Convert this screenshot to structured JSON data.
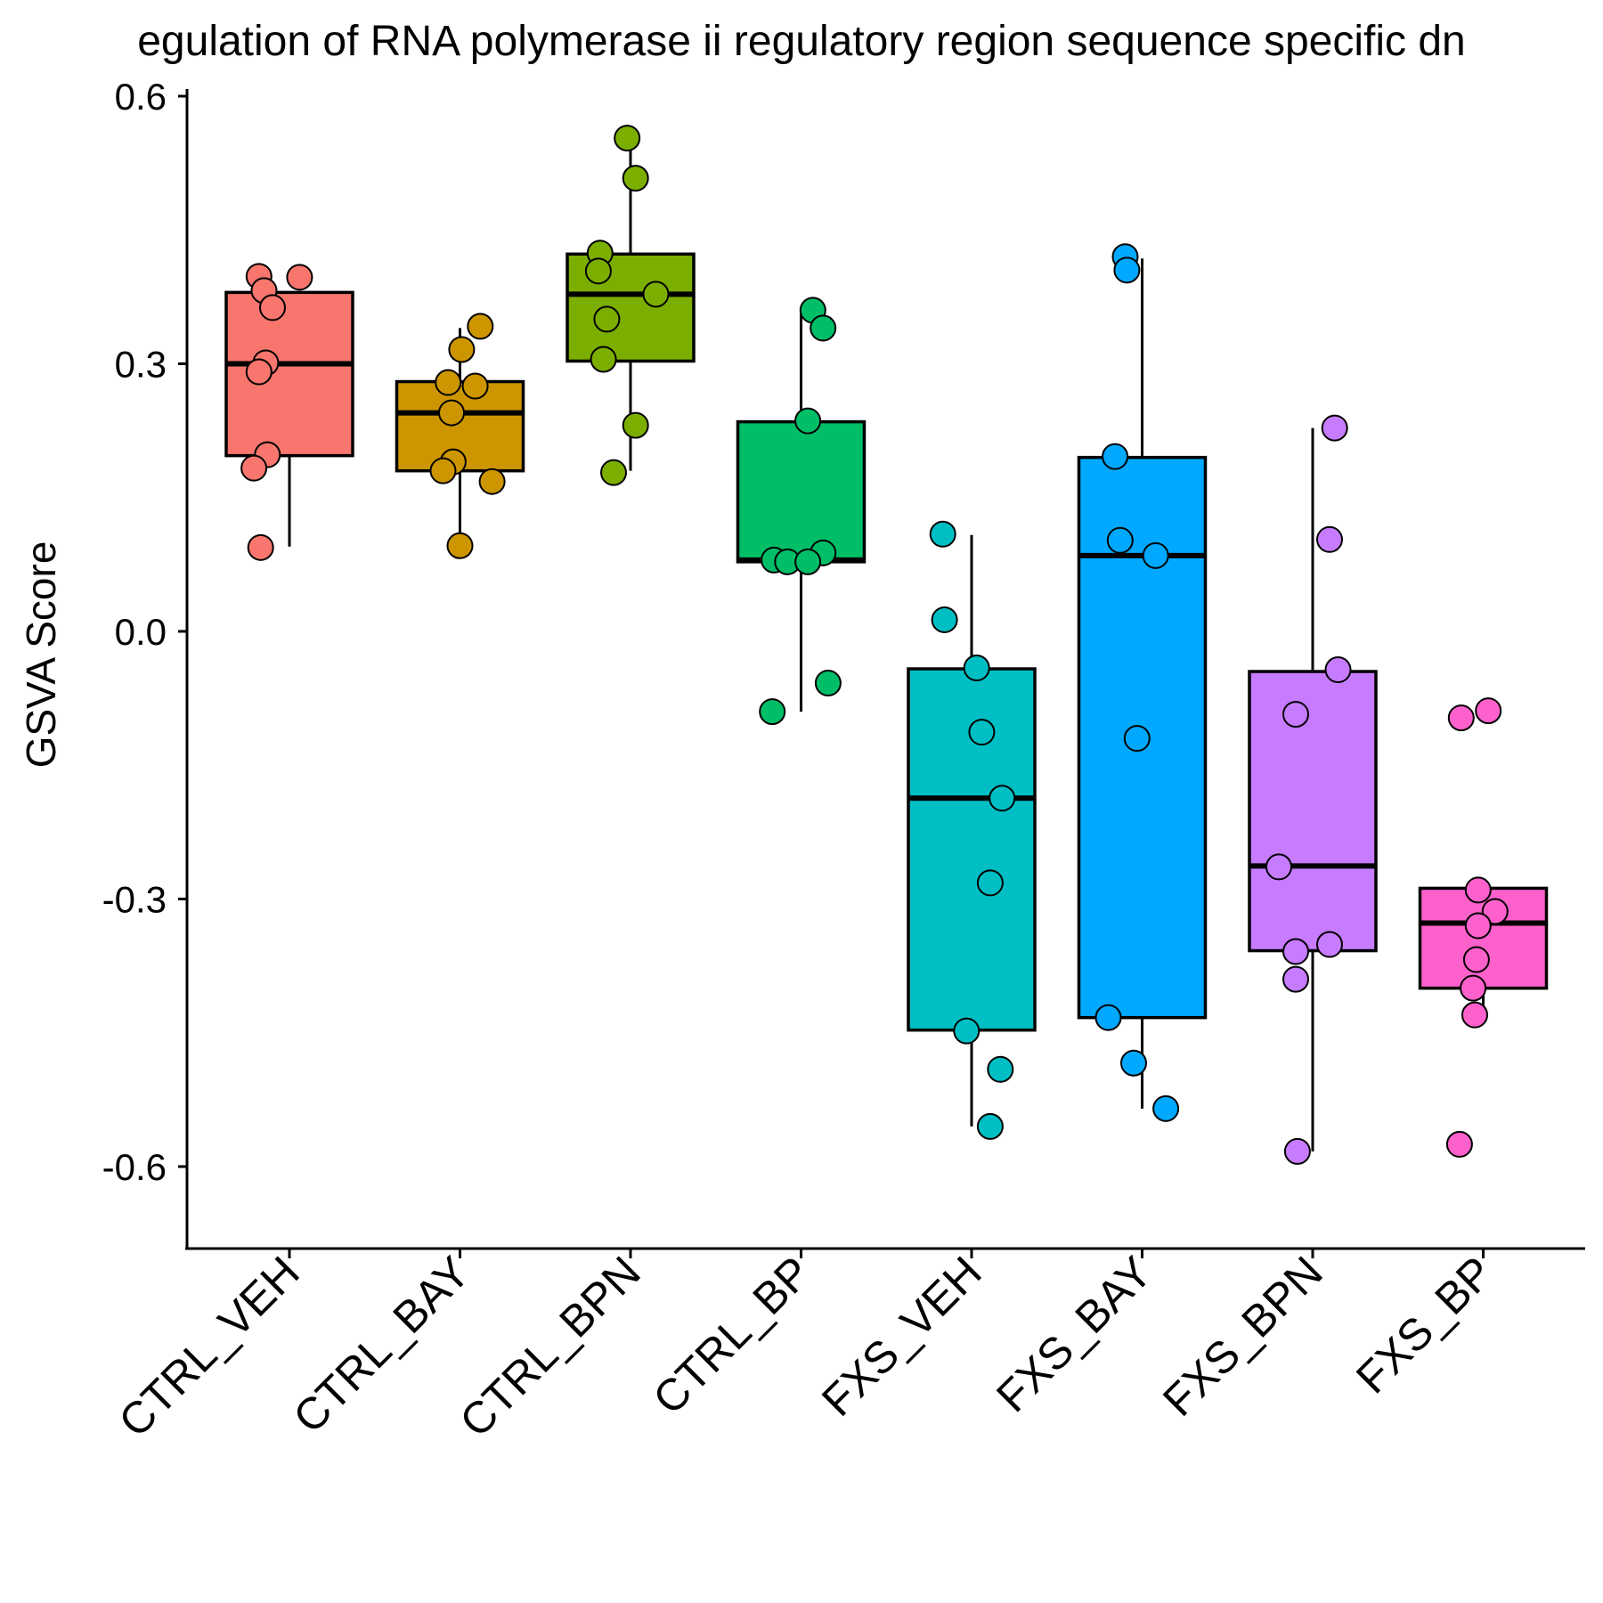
{
  "chart_data": {
    "type": "box",
    "title": "egulation of RNA polymerase ii regulatory region sequence specific dn",
    "xlabel": "",
    "ylabel": "GSVA Score",
    "ylim": [
      -0.645,
      0.6
    ],
    "yticks": [
      0.6,
      0.3,
      0.0,
      -0.3,
      -0.6
    ],
    "ytick_labels": [
      "0.6",
      "0.3",
      "0.0",
      "-0.3",
      "-0.6"
    ],
    "categories": [
      "CTRL_VEH",
      "CTRL_BAY",
      "CTRL_BPN",
      "CTRL_BP",
      "FXS_VEH",
      "FXS_BAY",
      "FXS_BPN",
      "FXS_BP"
    ],
    "colors": [
      "#F8766D",
      "#CD9600",
      "#7CAE00",
      "#00BE67",
      "#00BFC4",
      "#00A9FF",
      "#C77CFF",
      "#FF61CC"
    ],
    "boxes": [
      {
        "whisker_low": 0.095,
        "q1": 0.197,
        "median": 0.3,
        "q3": 0.38,
        "whisker_high": 0.38
      },
      {
        "whisker_low": 0.095,
        "q1": 0.18,
        "median": 0.245,
        "q3": 0.28,
        "whisker_high": 0.34
      },
      {
        "whisker_low": 0.18,
        "q1": 0.303,
        "median": 0.378,
        "q3": 0.423,
        "whisker_high": 0.552
      },
      {
        "whisker_low": -0.09,
        "q1": 0.078,
        "median": 0.08,
        "q3": 0.235,
        "whisker_high": 0.36
      },
      {
        "whisker_low": -0.555,
        "q1": -0.447,
        "median": -0.187,
        "q3": -0.042,
        "whisker_high": 0.108
      },
      {
        "whisker_low": -0.535,
        "q1": -0.433,
        "median": 0.085,
        "q3": 0.195,
        "whisker_high": 0.418
      },
      {
        "whisker_low": -0.583,
        "q1": -0.358,
        "median": -0.263,
        "q3": -0.045,
        "whisker_high": 0.228
      },
      {
        "whisker_low": -0.43,
        "q1": -0.4,
        "median": -0.327,
        "q3": -0.288,
        "whisker_high": -0.288
      }
    ],
    "points": [
      [
        {
          "jitter": -0.18,
          "y": 0.398
        },
        {
          "jitter": 0.06,
          "y": 0.397
        },
        {
          "jitter": -0.15,
          "y": 0.382
        },
        {
          "jitter": -0.1,
          "y": 0.363
        },
        {
          "jitter": -0.14,
          "y": 0.301
        },
        {
          "jitter": -0.18,
          "y": 0.291
        },
        {
          "jitter": -0.13,
          "y": 0.198
        },
        {
          "jitter": -0.21,
          "y": 0.183
        },
        {
          "jitter": -0.17,
          "y": 0.094
        }
      ],
      [
        {
          "jitter": 0.12,
          "y": 0.342
        },
        {
          "jitter": 0.01,
          "y": 0.316
        },
        {
          "jitter": -0.07,
          "y": 0.279
        },
        {
          "jitter": 0.09,
          "y": 0.275
        },
        {
          "jitter": -0.05,
          "y": 0.245
        },
        {
          "jitter": -0.04,
          "y": 0.19
        },
        {
          "jitter": -0.1,
          "y": 0.18
        },
        {
          "jitter": 0.19,
          "y": 0.168
        },
        {
          "jitter": 0.0,
          "y": 0.096
        }
      ],
      [
        {
          "jitter": -0.02,
          "y": 0.553
        },
        {
          "jitter": 0.03,
          "y": 0.508
        },
        {
          "jitter": -0.18,
          "y": 0.424
        },
        {
          "jitter": -0.19,
          "y": 0.404
        },
        {
          "jitter": 0.15,
          "y": 0.378
        },
        {
          "jitter": -0.14,
          "y": 0.35
        },
        {
          "jitter": -0.16,
          "y": 0.305
        },
        {
          "jitter": 0.03,
          "y": 0.231
        },
        {
          "jitter": -0.1,
          "y": 0.178
        }
      ],
      [
        {
          "jitter": 0.07,
          "y": 0.36
        },
        {
          "jitter": 0.13,
          "y": 0.34
        },
        {
          "jitter": 0.04,
          "y": 0.236
        },
        {
          "jitter": 0.13,
          "y": 0.088
        },
        {
          "jitter": -0.16,
          "y": 0.08
        },
        {
          "jitter": -0.08,
          "y": 0.078
        },
        {
          "jitter": 0.04,
          "y": 0.078
        },
        {
          "jitter": 0.16,
          "y": -0.058
        },
        {
          "jitter": -0.17,
          "y": -0.09
        }
      ],
      [
        {
          "jitter": -0.17,
          "y": 0.109
        },
        {
          "jitter": -0.16,
          "y": 0.013
        },
        {
          "jitter": 0.03,
          "y": -0.041
        },
        {
          "jitter": 0.06,
          "y": -0.113
        },
        {
          "jitter": 0.18,
          "y": -0.187
        },
        {
          "jitter": 0.11,
          "y": -0.282
        },
        {
          "jitter": -0.03,
          "y": -0.448
        },
        {
          "jitter": 0.17,
          "y": -0.491
        },
        {
          "jitter": 0.11,
          "y": -0.555
        }
      ],
      [
        {
          "jitter": -0.1,
          "y": 0.42
        },
        {
          "jitter": -0.09,
          "y": 0.405
        },
        {
          "jitter": -0.16,
          "y": 0.196
        },
        {
          "jitter": -0.13,
          "y": 0.102
        },
        {
          "jitter": 0.08,
          "y": 0.085
        },
        {
          "jitter": -0.03,
          "y": -0.12
        },
        {
          "jitter": -0.2,
          "y": -0.433
        },
        {
          "jitter": -0.05,
          "y": -0.484
        },
        {
          "jitter": 0.14,
          "y": -0.535
        }
      ],
      [
        {
          "jitter": 0.13,
          "y": 0.228
        },
        {
          "jitter": 0.1,
          "y": 0.103
        },
        {
          "jitter": 0.15,
          "y": -0.043
        },
        {
          "jitter": -0.1,
          "y": -0.093
        },
        {
          "jitter": -0.2,
          "y": -0.264
        },
        {
          "jitter": 0.1,
          "y": -0.351
        },
        {
          "jitter": -0.1,
          "y": -0.359
        },
        {
          "jitter": -0.1,
          "y": -0.39
        },
        {
          "jitter": -0.09,
          "y": -0.583
        }
      ],
      [
        {
          "jitter": 0.03,
          "y": -0.089
        },
        {
          "jitter": -0.13,
          "y": -0.097
        },
        {
          "jitter": -0.03,
          "y": -0.29
        },
        {
          "jitter": 0.07,
          "y": -0.314
        },
        {
          "jitter": -0.03,
          "y": -0.33
        },
        {
          "jitter": -0.04,
          "y": -0.368
        },
        {
          "jitter": -0.06,
          "y": -0.4
        },
        {
          "jitter": -0.05,
          "y": -0.43
        },
        {
          "jitter": -0.14,
          "y": -0.575
        }
      ]
    ]
  }
}
